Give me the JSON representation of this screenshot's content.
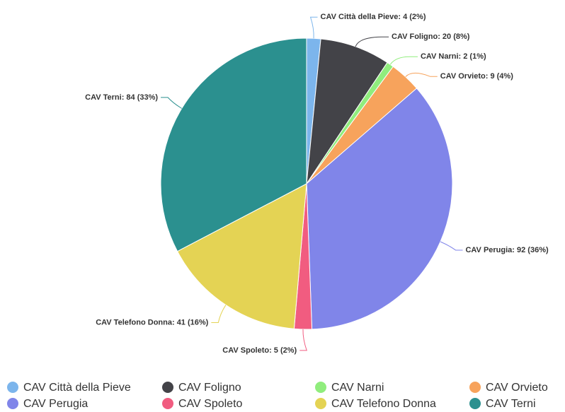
{
  "chart_data": {
    "type": "pie",
    "categories": [
      "CAV Città della Pieve",
      "CAV Foligno",
      "CAV Narni",
      "CAV Orvieto",
      "CAV Perugia",
      "CAV Spoleto",
      "CAV Telefono Donna",
      "CAV Terni"
    ],
    "values": [
      4,
      20,
      2,
      9,
      92,
      5,
      41,
      84
    ],
    "value_labels": [
      "CAV Città della Pieve: 4 (2%)",
      "CAV Foligno: 20 (8%)",
      "CAV Narni: 2 (1%)",
      "CAV Orvieto: 9 (4%)",
      "CAV Perugia: 92 (36%)",
      "CAV Spoleto: 5 (2%)",
      "CAV Telefono Donna: 41 (16%)",
      "CAV Terni: 84 (33%)"
    ],
    "colors": [
      "#7cb5ec",
      "#434348",
      "#90ed7d",
      "#f7a35c",
      "#8085e9",
      "#f15c80",
      "#e4d354",
      "#2b908f"
    ],
    "legend": "bottom"
  }
}
